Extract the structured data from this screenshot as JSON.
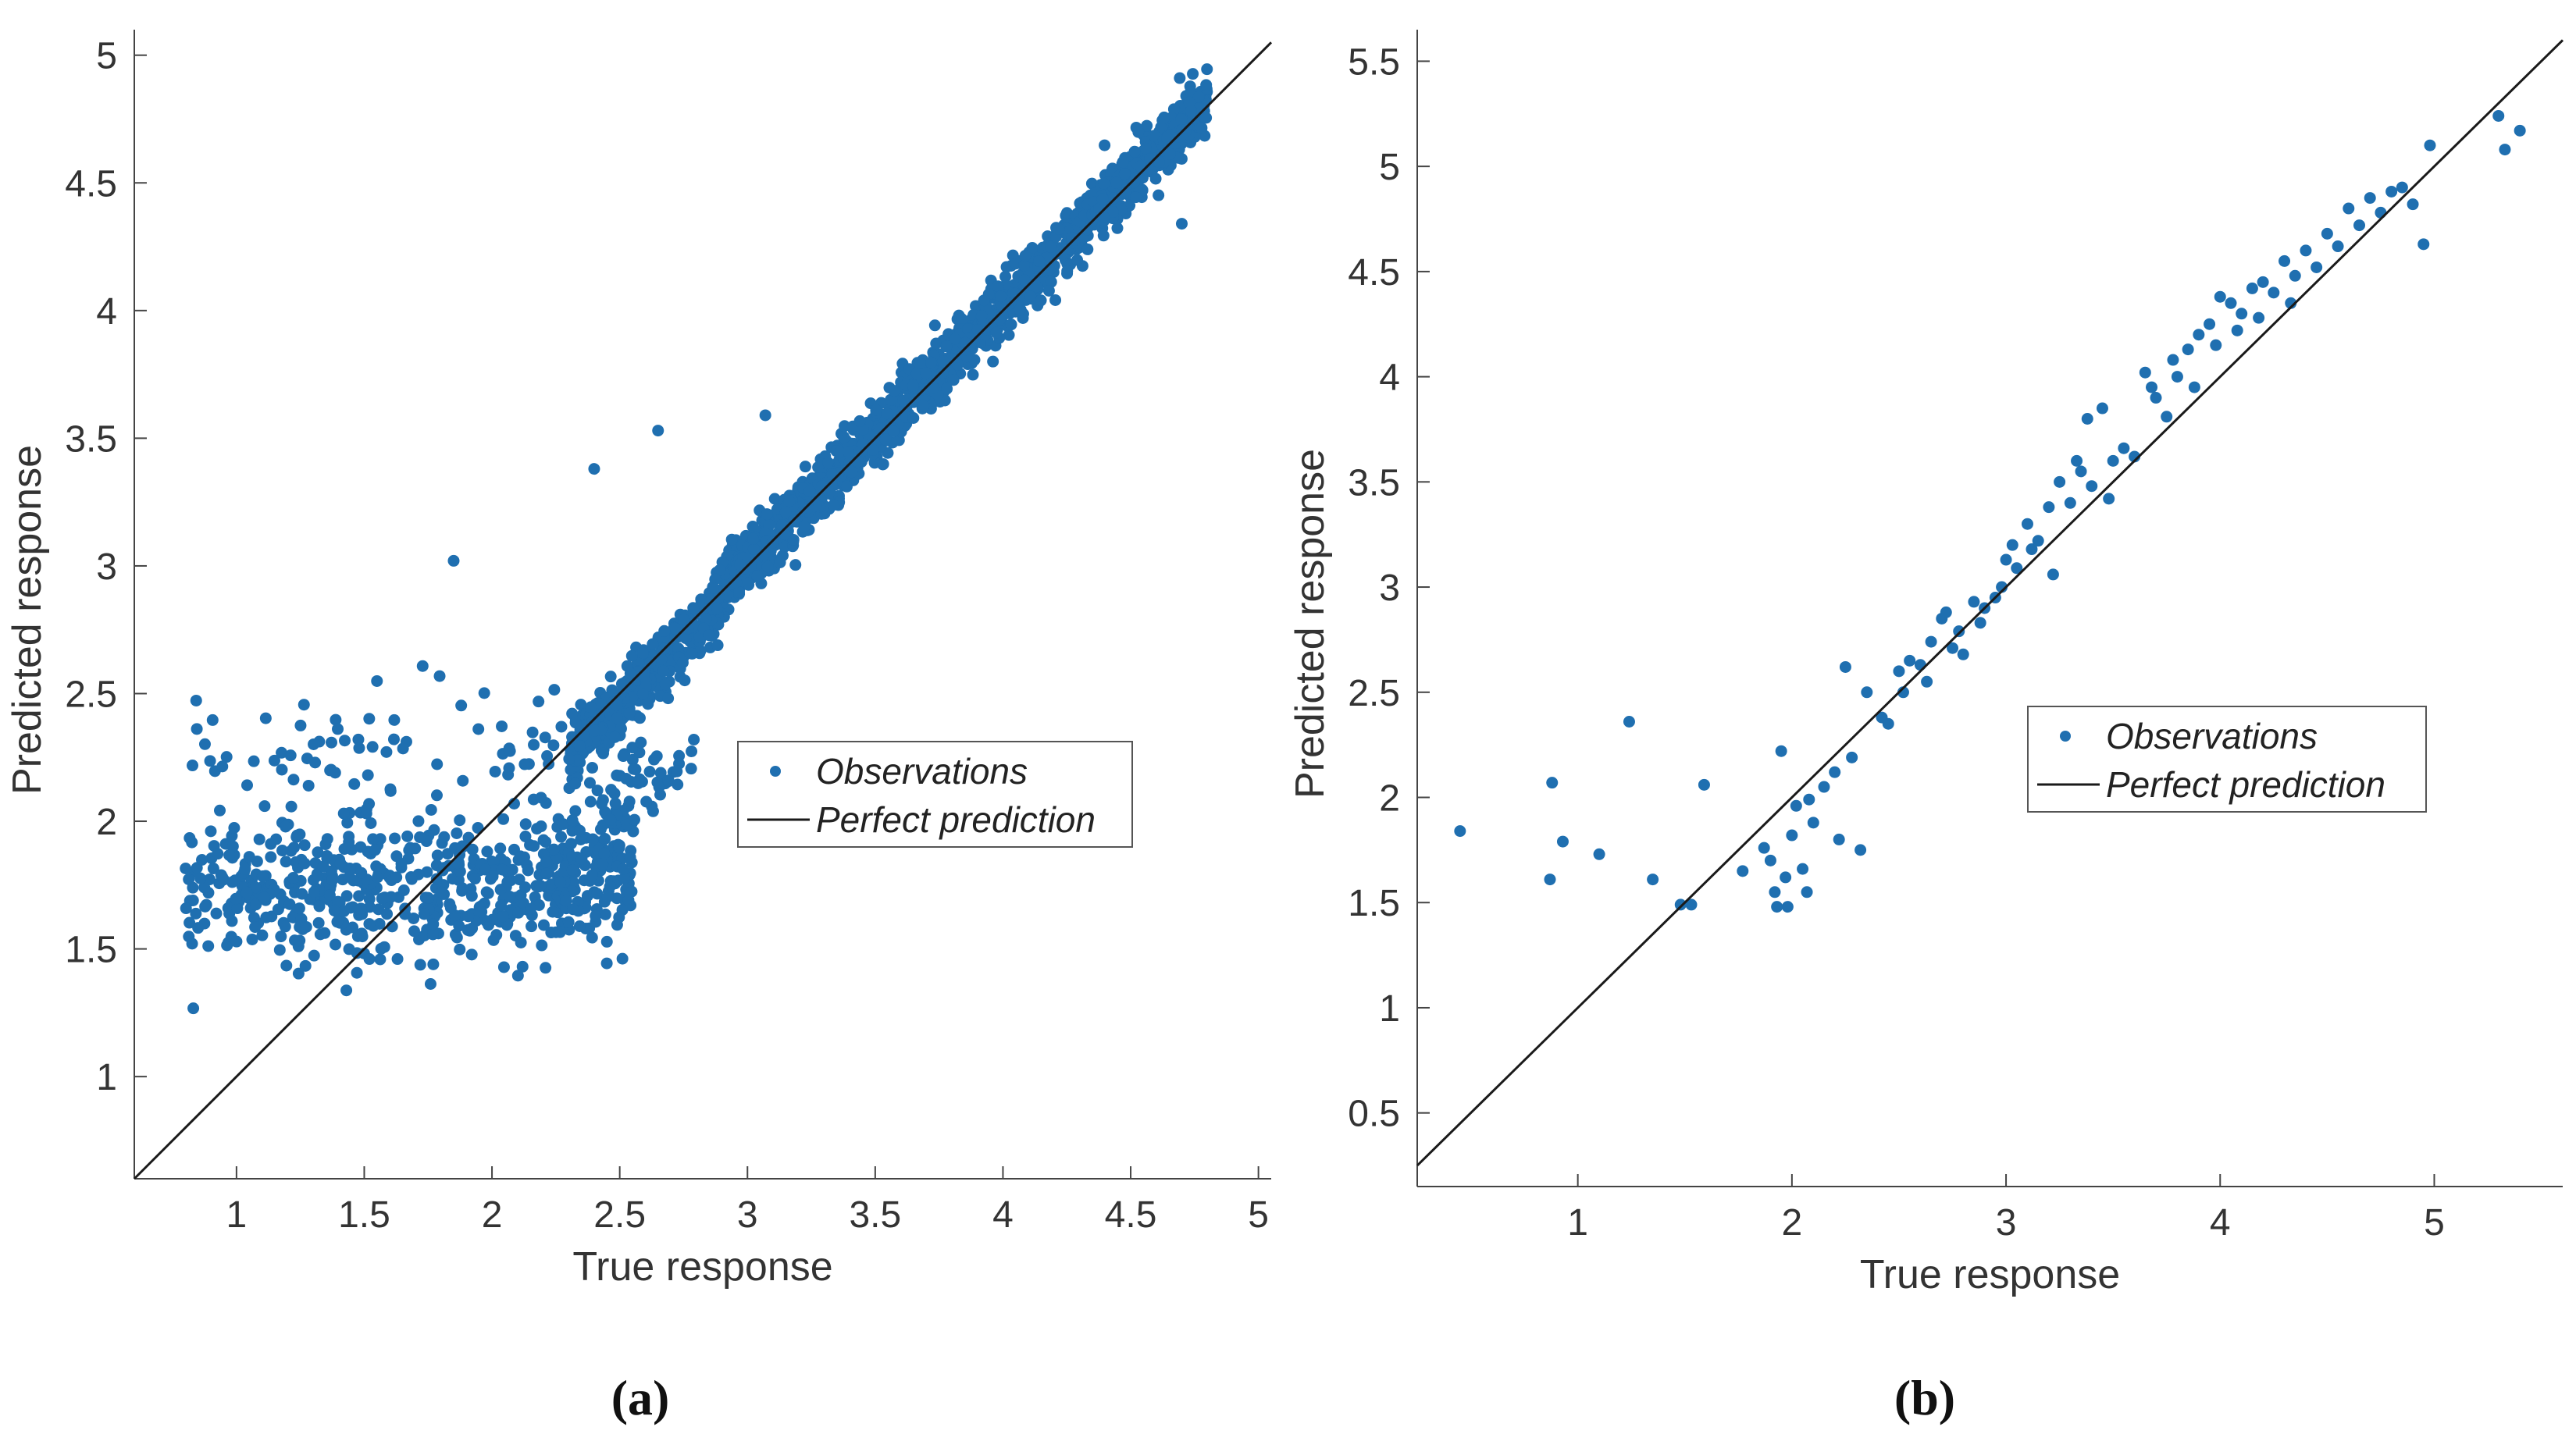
{
  "chart_data": [
    {
      "type": "scatter",
      "panel": "a",
      "xlabel": "True response",
      "ylabel": "Predicted response",
      "xlim": [
        0.6,
        5.05
      ],
      "ylim": [
        0.6,
        5.1
      ],
      "xticks": [
        1,
        1.5,
        2,
        2.5,
        3,
        3.5,
        4,
        4.5,
        5
      ],
      "yticks": [
        1,
        1.5,
        2,
        2.5,
        3,
        3.5,
        4,
        4.5,
        5
      ],
      "legend": {
        "position": "center-right",
        "entries": [
          "Observations",
          "Perfect prediction"
        ]
      },
      "series": [
        {
          "name": "Observations",
          "style": "points",
          "color": "#1f6fb0",
          "point_count_approx": 2500,
          "distribution": "dense cloud hugging y=x from x≈2.3 to 4.8; flat cluster near y≈1.5–2.1 for x≈0.8–2.4",
          "notable_points": [
            [
              2.4,
              3.38
            ],
            [
              2.65,
              3.53
            ],
            [
              1.85,
              3.02
            ],
            [
              3.07,
              3.59
            ],
            [
              4.7,
              4.34
            ]
          ]
        },
        {
          "name": "Perfect prediction",
          "style": "line",
          "color": "#1a1a1a",
          "points": [
            [
              0.6,
              0.6
            ],
            [
              5.05,
              5.05
            ]
          ]
        }
      ]
    },
    {
      "type": "scatter",
      "panel": "b",
      "xlabel": "True response",
      "ylabel": "Predicted response",
      "xlim": [
        0.25,
        5.6
      ],
      "ylim": [
        0.15,
        5.65
      ],
      "xticks": [
        1,
        2,
        3,
        4,
        5
      ],
      "yticks": [
        0.5,
        1,
        1.5,
        2,
        2.5,
        3,
        3.5,
        4,
        4.5,
        5,
        5.5
      ],
      "legend": {
        "position": "center-right",
        "entries": [
          "Observations",
          "Perfect prediction"
        ]
      },
      "series": [
        {
          "name": "Observations",
          "style": "points",
          "color": "#1f6fb0",
          "points": [
            [
              0.45,
              1.84
            ],
            [
              0.87,
              1.61
            ],
            [
              0.88,
              2.07
            ],
            [
              0.93,
              1.79
            ],
            [
              1.1,
              1.73
            ],
            [
              1.24,
              2.36
            ],
            [
              1.35,
              1.61
            ],
            [
              1.48,
              1.49
            ],
            [
              1.53,
              1.49
            ],
            [
              1.59,
              2.06
            ],
            [
              1.77,
              1.65
            ],
            [
              1.87,
              1.76
            ],
            [
              1.9,
              1.7
            ],
            [
              1.92,
              1.55
            ],
            [
              1.93,
              1.48
            ],
            [
              1.95,
              2.22
            ],
            [
              1.97,
              1.62
            ],
            [
              1.98,
              1.48
            ],
            [
              2.0,
              1.82
            ],
            [
              2.02,
              1.96
            ],
            [
              2.05,
              1.66
            ],
            [
              2.07,
              1.55
            ],
            [
              2.08,
              1.99
            ],
            [
              2.1,
              1.88
            ],
            [
              2.15,
              2.05
            ],
            [
              2.2,
              2.12
            ],
            [
              2.22,
              1.8
            ],
            [
              2.25,
              2.62
            ],
            [
              2.28,
              2.19
            ],
            [
              2.32,
              1.75
            ],
            [
              2.35,
              2.5
            ],
            [
              2.42,
              2.38
            ],
            [
              2.45,
              2.35
            ],
            [
              2.5,
              2.6
            ],
            [
              2.52,
              2.5
            ],
            [
              2.55,
              2.65
            ],
            [
              2.6,
              2.63
            ],
            [
              2.63,
              2.55
            ],
            [
              2.65,
              2.74
            ],
            [
              2.7,
              2.85
            ],
            [
              2.72,
              2.88
            ],
            [
              2.75,
              2.71
            ],
            [
              2.78,
              2.79
            ],
            [
              2.8,
              2.68
            ],
            [
              2.85,
              2.93
            ],
            [
              2.88,
              2.83
            ],
            [
              2.9,
              2.9
            ],
            [
              2.95,
              2.95
            ],
            [
              2.98,
              3.0
            ],
            [
              3.0,
              3.13
            ],
            [
              3.03,
              3.2
            ],
            [
              3.05,
              3.09
            ],
            [
              3.1,
              3.3
            ],
            [
              3.12,
              3.18
            ],
            [
              3.15,
              3.22
            ],
            [
              3.2,
              3.38
            ],
            [
              3.22,
              3.06
            ],
            [
              3.25,
              3.5
            ],
            [
              3.3,
              3.4
            ],
            [
              3.33,
              3.6
            ],
            [
              3.35,
              3.55
            ],
            [
              3.38,
              3.8
            ],
            [
              3.4,
              3.48
            ],
            [
              3.45,
              3.85
            ],
            [
              3.48,
              3.42
            ],
            [
              3.5,
              3.6
            ],
            [
              3.55,
              3.66
            ],
            [
              3.6,
              3.62
            ],
            [
              3.65,
              4.02
            ],
            [
              3.68,
              3.95
            ],
            [
              3.7,
              3.9
            ],
            [
              3.75,
              3.81
            ],
            [
              3.78,
              4.08
            ],
            [
              3.8,
              4.0
            ],
            [
              3.85,
              4.13
            ],
            [
              3.88,
              3.95
            ],
            [
              3.9,
              4.2
            ],
            [
              3.95,
              4.25
            ],
            [
              3.98,
              4.15
            ],
            [
              4.0,
              4.38
            ],
            [
              4.05,
              4.35
            ],
            [
              4.08,
              4.22
            ],
            [
              4.1,
              4.3
            ],
            [
              4.15,
              4.42
            ],
            [
              4.18,
              4.28
            ],
            [
              4.2,
              4.45
            ],
            [
              4.25,
              4.4
            ],
            [
              4.3,
              4.55
            ],
            [
              4.33,
              4.35
            ],
            [
              4.35,
              4.48
            ],
            [
              4.4,
              4.6
            ],
            [
              4.45,
              4.52
            ],
            [
              4.5,
              4.68
            ],
            [
              4.55,
              4.62
            ],
            [
              4.6,
              4.8
            ],
            [
              4.65,
              4.72
            ],
            [
              4.7,
              4.85
            ],
            [
              4.75,
              4.78
            ],
            [
              4.8,
              4.88
            ],
            [
              4.85,
              4.9
            ],
            [
              4.9,
              4.82
            ],
            [
              4.95,
              4.63
            ],
            [
              4.98,
              5.1
            ],
            [
              5.3,
              5.24
            ],
            [
              5.33,
              5.08
            ],
            [
              5.4,
              5.17
            ]
          ]
        },
        {
          "name": "Perfect prediction",
          "style": "line",
          "color": "#1a1a1a",
          "points": [
            [
              0.25,
              0.25
            ],
            [
              5.6,
              5.6
            ]
          ]
        }
      ]
    }
  ],
  "panel_labels": {
    "a": "(a)",
    "b": "(b)"
  },
  "colors": {
    "marker": "#1f6fb0",
    "line": "#1a1a1a",
    "axis": "#444444"
  }
}
